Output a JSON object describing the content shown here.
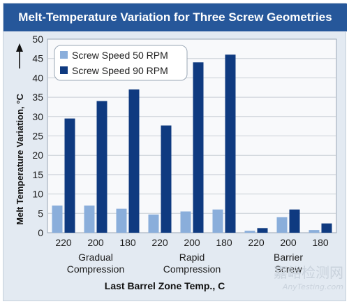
{
  "chart_data": {
    "type": "bar",
    "title": "Melt-Temperature Variation for Three Screw Geometries",
    "ylabel": "Melt Temperature Variation, °C",
    "xlabel": "Last Barrel Zone Temp., C",
    "ylim": [
      0,
      50
    ],
    "yticks": [
      0,
      5,
      10,
      15,
      20,
      25,
      30,
      35,
      40,
      45,
      50
    ],
    "grid": true,
    "legend_position": "top-left",
    "categories": [
      "220",
      "200",
      "180",
      "220",
      "200",
      "180",
      "220",
      "200",
      "180"
    ],
    "groups": [
      {
        "label_lines": [
          "Gradual",
          "Compression"
        ],
        "start": 0,
        "count": 3
      },
      {
        "label_lines": [
          "Rapid",
          "Compression"
        ],
        "start": 3,
        "count": 3
      },
      {
        "label_lines": [
          "Barrier",
          "Screw"
        ],
        "start": 6,
        "count": 3
      }
    ],
    "series": [
      {
        "name": "Screw Speed 50 RPM",
        "color": "#8aaedb",
        "values": [
          7,
          7,
          6.2,
          4.7,
          5.5,
          6,
          0.5,
          4,
          0.7
        ]
      },
      {
        "name": "Screw Speed 90 RPM",
        "color": "#0f3a80",
        "values": [
          29.5,
          34,
          37,
          27.7,
          44,
          46,
          1.2,
          6,
          2.4
        ]
      }
    ]
  },
  "watermark": {
    "main": "嘉峪检测网",
    "sub": "AnyTesting.com"
  },
  "colors": {
    "title_bar": "#26579a",
    "panel": "#e3eaf2",
    "plot_bg": "#f8f9fb",
    "grid": "#c9cfd6"
  }
}
